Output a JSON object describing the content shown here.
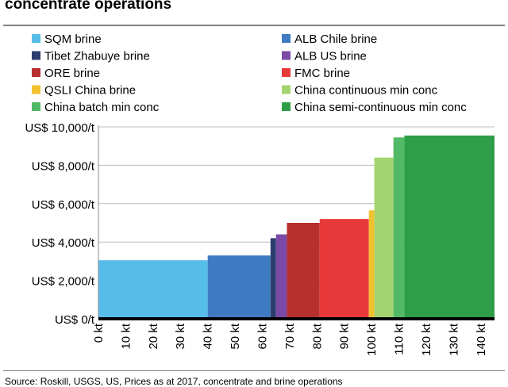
{
  "header": {
    "title": "concentrate operations",
    "source": "Source: Roskill, USGS, US, Prices as at 2017, concentrate and brine operations"
  },
  "chart_data": {
    "type": "bar",
    "subtype": "cost-curve",
    "title": "",
    "xlabel": "",
    "ylabel": "",
    "x_unit": "kt",
    "xlim": [
      0,
      145
    ],
    "ylim": [
      0,
      10000
    ],
    "x_ticks": [
      "0 kt",
      "10 kt",
      "20 kt",
      "30 kt",
      "40 kt",
      "50 kt",
      "60 kt",
      "70 kt",
      "80 kt",
      "90 kt",
      "100 kt",
      "110 kt",
      "120 kt",
      "130 kt",
      "140 kt"
    ],
    "y_ticks": [
      "US$ 0/t",
      "US$ 2,000/t",
      "US$ 4,000/t",
      "US$ 6,000/t",
      "US$ 8,000/t",
      "US$ 10,000/t"
    ],
    "legend_position": "top",
    "grid": true,
    "series": [
      {
        "name": "SQM brine",
        "color": "#56bce9",
        "x_start": 0,
        "x_end": 40,
        "value": 3050
      },
      {
        "name": "ALB Chile brine",
        "color": "#3e7bc2",
        "x_start": 40,
        "x_end": 63,
        "value": 3300
      },
      {
        "name": "Tibet Zhabuye brine",
        "color": "#2c3e6e",
        "x_start": 63,
        "x_end": 65,
        "value": 4200
      },
      {
        "name": "ALB US brine",
        "color": "#7b4aa6",
        "x_start": 65,
        "x_end": 69,
        "value": 4400
      },
      {
        "name": "ORE brine",
        "color": "#b8302e",
        "x_start": 69,
        "x_end": 81,
        "value": 5000
      },
      {
        "name": "FMC brine",
        "color": "#e8393a",
        "x_start": 81,
        "x_end": 99,
        "value": 5200
      },
      {
        "name": "QSLI China brine",
        "color": "#f2c12e",
        "x_start": 99,
        "x_end": 101,
        "value": 5650
      },
      {
        "name": "China continuous min conc",
        "color": "#a3d470",
        "x_start": 101,
        "x_end": 108,
        "value": 8400
      },
      {
        "name": "China batch min conc",
        "color": "#52b966",
        "x_start": 108,
        "x_end": 112,
        "value": 9450
      },
      {
        "name": "China semi-continuous min conc",
        "color": "#2e9e49",
        "x_start": 112,
        "x_end": 145,
        "value": 9550
      }
    ]
  }
}
